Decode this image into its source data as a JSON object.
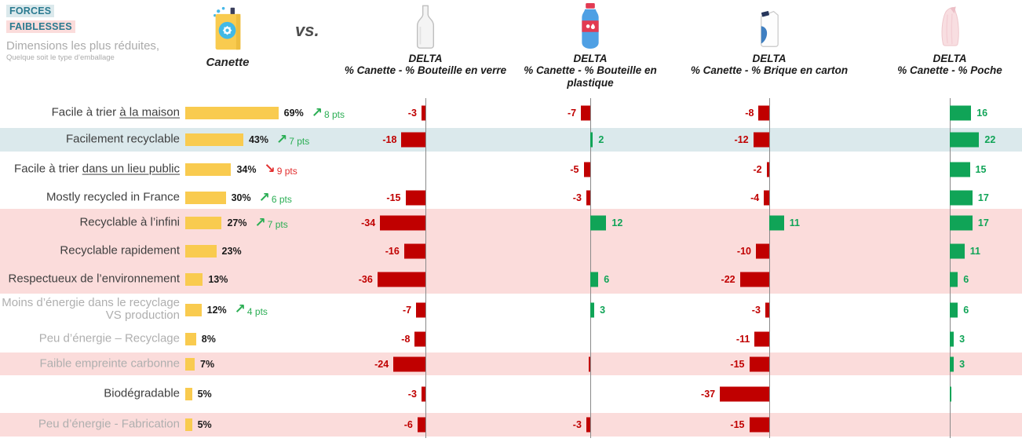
{
  "legend": {
    "forces": "FORCES",
    "faiblesses": "FAIBLESSES",
    "note_line1": "Dimensions les plus réduites,",
    "note_line2": "Quelque soit le type d’emballage"
  },
  "header": {
    "canette_label": "Canette",
    "canette_icon": "can-icon",
    "vs_label": "vs.",
    "columns": [
      {
        "id": "verre",
        "icon": "glass-bottle-icon",
        "title": "DELTA",
        "subtitle": "% Canette - % Bouteille en verre"
      },
      {
        "id": "plastique",
        "icon": "plastic-bottle-icon",
        "title": "DELTA",
        "subtitle": "% Canette - % Bouteille en plastique"
      },
      {
        "id": "carton",
        "icon": "carton-brick-icon",
        "title": "DELTA",
        "subtitle": "% Canette - % Brique en carton"
      },
      {
        "id": "poche",
        "icon": "pouch-icon",
        "title": "DELTA",
        "subtitle": "% Canette - % Poche"
      }
    ]
  },
  "colors": {
    "yellow_bar": "#F9CB4F",
    "negative_red": "#C00000",
    "positive_green": "#10A457",
    "trend_up_green": "#2BAE54",
    "trend_down_red": "#E22E2E",
    "highlight_blue": "#DBE9EC",
    "highlight_pink": "#FBDCDB",
    "teal_text": "#2A7A90",
    "muted_text": "#ABABAB",
    "axis_gray": "#8A8A8A"
  },
  "chart_data": {
    "type": "bar",
    "orientation": "horizontal",
    "zero_line": true,
    "grid": false,
    "categories": [
      "Facile à trier à la maison",
      "Facilement recyclable",
      "Facile à trier dans un lieu public",
      "Mostly recycled in France",
      "Recyclable à l’infini",
      "Recyclable rapidement",
      "Respectueux de l’environnement",
      "Moins d’énergie dans le recyclage VS production",
      "Peu d’énergie – Recyclage",
      "Faible empreinte carbonne",
      "Biodégradable",
      "Peu d’énergie - Fabrication"
    ],
    "series": [
      {
        "name": "Canette (%)",
        "values": [
          69,
          43,
          34,
          30,
          27,
          23,
          13,
          12,
          8,
          7,
          5,
          5
        ]
      },
      {
        "name": "Delta % Canette - % Bouteille en verre",
        "values": [
          -3,
          -18,
          null,
          -15,
          -34,
          -16,
          -36,
          -7,
          -8,
          -24,
          -3,
          -6
        ]
      },
      {
        "name": "Delta % Canette - % Bouteille en plastique",
        "values": [
          -7,
          2,
          -5,
          -3,
          12,
          null,
          6,
          3,
          null,
          -1,
          null,
          -3
        ]
      },
      {
        "name": "Delta % Canette - % Brique en carton",
        "values": [
          -8,
          -12,
          -2,
          -4,
          11,
          -10,
          -22,
          -3,
          -11,
          -15,
          -37,
          -15
        ]
      },
      {
        "name": "Delta % Canette - % Poche",
        "values": [
          16,
          22,
          15,
          17,
          17,
          11,
          6,
          6,
          3,
          3,
          1,
          null
        ]
      }
    ],
    "trends": [
      {
        "row": 0,
        "dir": "up",
        "label": "8 pts"
      },
      {
        "row": 1,
        "dir": "up",
        "label": "7 pts"
      },
      {
        "row": 2,
        "dir": "down",
        "label": "9 pts"
      },
      {
        "row": 3,
        "dir": "up",
        "label": "6 pts"
      },
      {
        "row": 4,
        "dir": "up",
        "label": "7 pts"
      },
      {
        "row": 7,
        "dir": "up",
        "label": "4 pts"
      }
    ],
    "rows": [
      {
        "label": [
          {
            "t": "Facile à trier "
          },
          {
            "t": "à la maison",
            "u": true
          }
        ],
        "muted": false,
        "highlight": null,
        "canette": {
          "pct": 69,
          "label": "69%"
        },
        "trend": {
          "dir": "up",
          "label": "8 pts"
        },
        "deltas": {
          "verre": {
            "v": -3,
            "label": "-3"
          },
          "plastique": {
            "v": -7,
            "label": "-7"
          },
          "carton": {
            "v": -8,
            "label": "-8"
          },
          "poche": {
            "v": 16,
            "label": "16"
          }
        }
      },
      {
        "label": [
          {
            "t": "Facilement recyclable"
          }
        ],
        "muted": false,
        "highlight": "blue",
        "canette": {
          "pct": 43,
          "label": "43%"
        },
        "trend": {
          "dir": "up",
          "label": "7 pts"
        },
        "deltas": {
          "verre": {
            "v": -18,
            "label": "-18"
          },
          "plastique": {
            "v": 2,
            "label": "2"
          },
          "carton": {
            "v": -12,
            "label": "-12"
          },
          "poche": {
            "v": 22,
            "label": "22"
          }
        }
      },
      {
        "label": [
          {
            "t": "Facile à trier "
          },
          {
            "t": "dans un lieu public",
            "u": true
          }
        ],
        "muted": false,
        "highlight": null,
        "canette": {
          "pct": 34,
          "label": "34%"
        },
        "trend": {
          "dir": "down",
          "label": "9 pts"
        },
        "deltas": {
          "plastique": {
            "v": -5,
            "label": "-5"
          },
          "carton": {
            "v": -2,
            "label": "-2"
          },
          "poche": {
            "v": 15,
            "label": "15"
          }
        }
      },
      {
        "label": [
          {
            "t": "Mostly recycled in France"
          }
        ],
        "muted": false,
        "highlight": null,
        "canette": {
          "pct": 30,
          "label": "30%"
        },
        "trend": {
          "dir": "up",
          "label": "6 pts"
        },
        "deltas": {
          "verre": {
            "v": -15,
            "label": "-15"
          },
          "plastique": {
            "v": -3,
            "label": "-3"
          },
          "carton": {
            "v": -4,
            "label": "-4"
          },
          "poche": {
            "v": 17,
            "label": "17"
          }
        }
      },
      {
        "label": [
          {
            "t": "Recyclable à l’infini"
          }
        ],
        "muted": false,
        "highlight": "pink",
        "canette": {
          "pct": 27,
          "label": "27%"
        },
        "trend": {
          "dir": "up",
          "label": "7 pts"
        },
        "deltas": {
          "verre": {
            "v": -34,
            "label": "-34"
          },
          "plastique": {
            "v": 12,
            "label": "12"
          },
          "carton": {
            "v": 11,
            "label": "11"
          },
          "poche": {
            "v": 17,
            "label": "17"
          }
        }
      },
      {
        "label": [
          {
            "t": "Recyclable rapidement"
          }
        ],
        "muted": false,
        "highlight": "pink",
        "canette": {
          "pct": 23,
          "label": "23%"
        },
        "trend": null,
        "deltas": {
          "verre": {
            "v": -16,
            "label": "-16"
          },
          "carton": {
            "v": -10,
            "label": "-10"
          },
          "poche": {
            "v": 11,
            "label": "11"
          }
        }
      },
      {
        "label": [
          {
            "t": "Respectueux de l’environnement"
          }
        ],
        "muted": false,
        "highlight": "pink",
        "canette": {
          "pct": 13,
          "label": "13%"
        },
        "trend": null,
        "deltas": {
          "verre": {
            "v": -36,
            "label": "-36"
          },
          "plastique": {
            "v": 6,
            "label": "6"
          },
          "carton": {
            "v": -22,
            "label": "-22"
          },
          "poche": {
            "v": 6,
            "label": "6"
          }
        }
      },
      {
        "label": [
          {
            "t": "Moins d’énergie dans le recyclage VS production"
          }
        ],
        "muted": true,
        "highlight": null,
        "canette": {
          "pct": 12,
          "label": "12%"
        },
        "trend": {
          "dir": "up",
          "label": "4 pts"
        },
        "deltas": {
          "verre": {
            "v": -7,
            "label": "-7"
          },
          "plastique": {
            "v": 3,
            "label": "3"
          },
          "carton": {
            "v": -3,
            "label": "-3"
          },
          "poche": {
            "v": 6,
            "label": "6"
          }
        }
      },
      {
        "label": [
          {
            "t": "Peu d’énergie – Recyclage"
          }
        ],
        "muted": true,
        "highlight": null,
        "canette": {
          "pct": 8,
          "label": "8%"
        },
        "trend": null,
        "deltas": {
          "verre": {
            "v": -8,
            "label": "-8"
          },
          "carton": {
            "v": -11,
            "label": "-11"
          },
          "poche": {
            "v": 3,
            "label": "3"
          }
        }
      },
      {
        "label": [
          {
            "t": "Faible empreinte carbonne"
          }
        ],
        "muted": true,
        "highlight": "pink",
        "canette": {
          "pct": 7,
          "label": "7%"
        },
        "trend": null,
        "deltas": {
          "verre": {
            "v": -24,
            "label": "-24"
          },
          "plastique": {
            "v": -1,
            "label": ""
          },
          "carton": {
            "v": -15,
            "label": "-15"
          },
          "poche": {
            "v": 3,
            "label": "3"
          }
        }
      },
      {
        "label": [
          {
            "t": "Biodégradable"
          }
        ],
        "muted": false,
        "highlight": null,
        "canette": {
          "pct": 5,
          "label": "5%"
        },
        "trend": null,
        "deltas": {
          "verre": {
            "v": -3,
            "label": "-3"
          },
          "carton": {
            "v": -37,
            "label": "-37"
          },
          "poche": {
            "v": 1,
            "label": ""
          }
        }
      },
      {
        "label": [
          {
            "t": "Peu d’énergie - Fabrication"
          }
        ],
        "muted": true,
        "highlight": "pink",
        "canette": {
          "pct": 5,
          "label": "5%"
        },
        "trend": null,
        "deltas": {
          "verre": {
            "v": -6,
            "label": "-6"
          },
          "plastique": {
            "v": -3,
            "label": "-3"
          },
          "carton": {
            "v": -15,
            "label": "-15"
          }
        }
      }
    ]
  }
}
